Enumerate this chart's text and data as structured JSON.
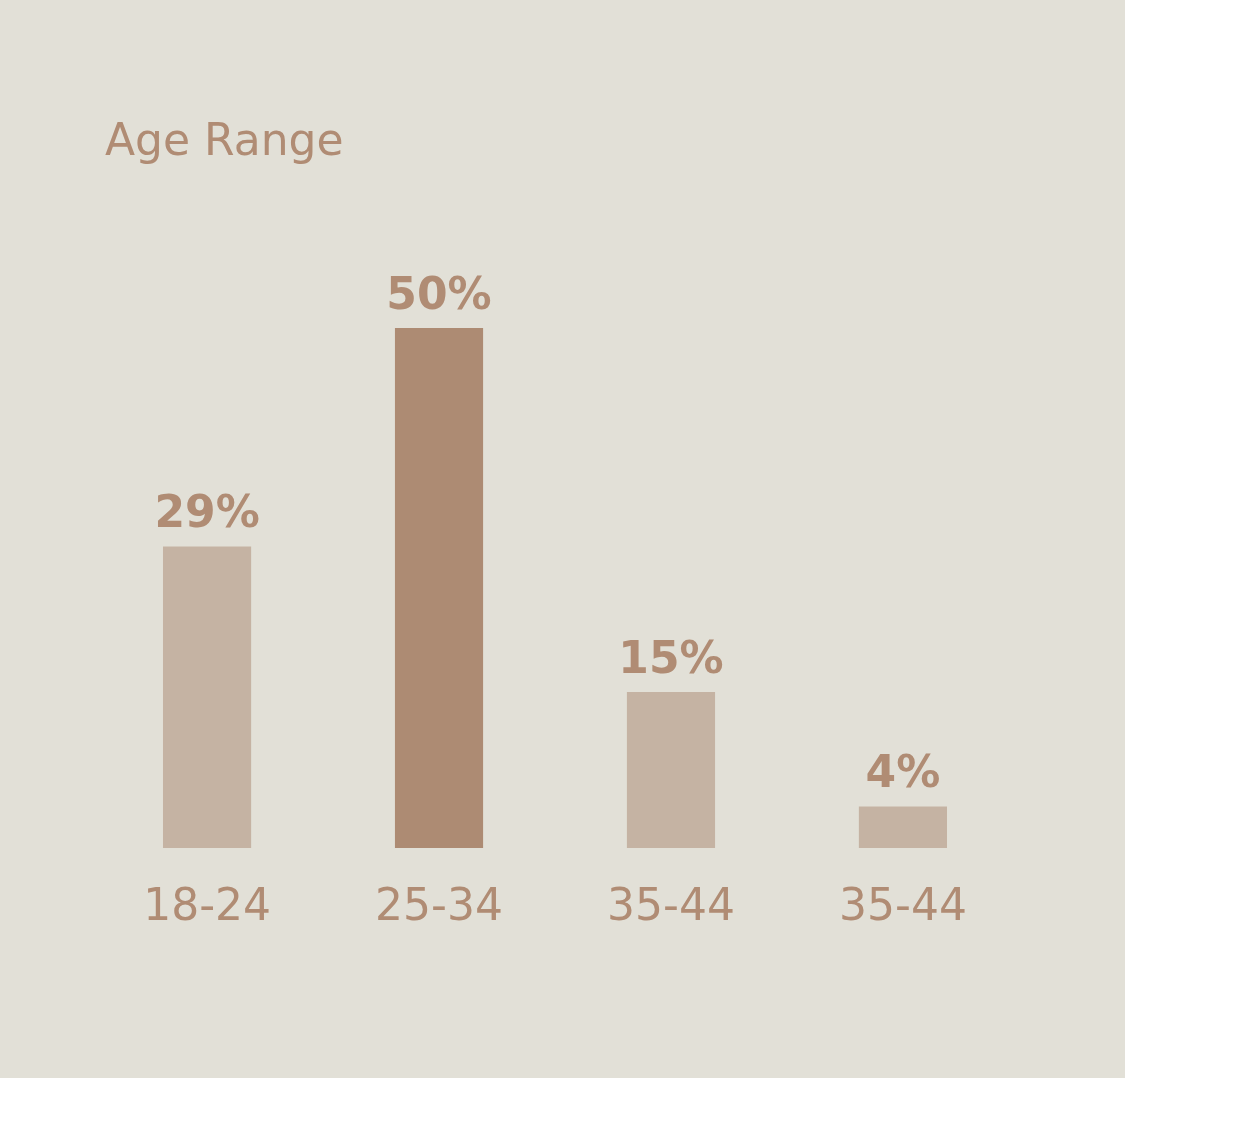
{
  "chart_data": {
    "type": "bar",
    "title": "Age Range",
    "categories": [
      "18-24",
      "25-34",
      "35-44",
      "35-44"
    ],
    "values": [
      29,
      50,
      15,
      4
    ],
    "colors": [
      "#c5b3a3",
      "#ad8b73",
      "#c5b3a3",
      "#c5b3a3"
    ],
    "value_labels": [
      "29%",
      "50%",
      "15%",
      "4%"
    ]
  }
}
